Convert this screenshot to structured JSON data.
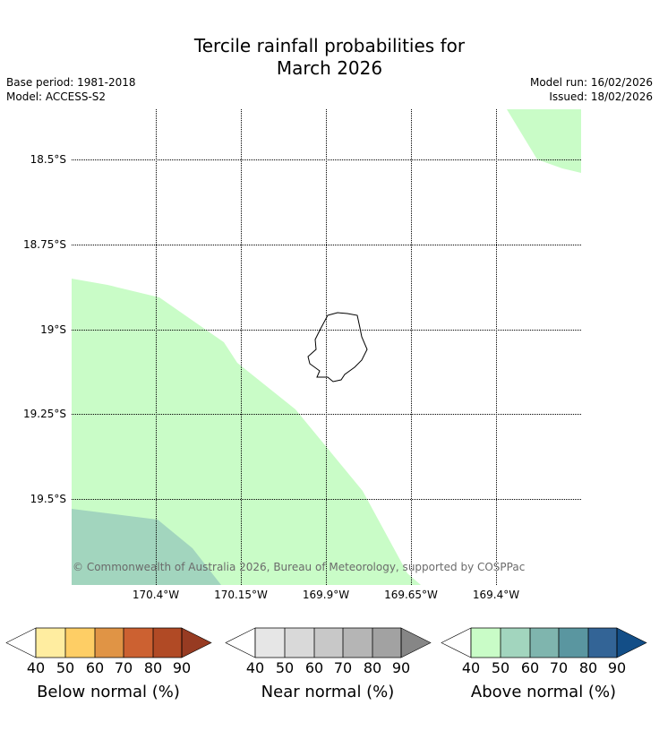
{
  "title_line1": "Tercile rainfall probabilities for",
  "title_line2": "March 2026",
  "base_period": "Base period: 1981-2018",
  "model": "Model: ACCESS-S2",
  "model_run": "Model run: 16/02/2026",
  "issued": "Issued: 18/02/2026",
  "latitude_labels": [
    "18.5°S",
    "18.75°S",
    "19°S",
    "19.25°S",
    "19.5°S"
  ],
  "longitude_labels": [
    "170.4°W",
    "170.15°W",
    "169.9°W",
    "169.65°W",
    "169.4°W"
  ],
  "copyright": "© Commonwealth of Australia 2026, Bureau of Meteorology, supported by COSPPac",
  "colorbars": [
    {
      "label": "Below normal (%)",
      "ticks": [
        "40",
        "50",
        "60",
        "70",
        "80",
        "90"
      ],
      "colors": [
        "#ffeda0",
        "#fece65",
        "#e09445",
        "#cc6131",
        "#b14a25"
      ],
      "under": "#ffffff",
      "over": "#973b22"
    },
    {
      "label": "Near normal (%)",
      "ticks": [
        "40",
        "50",
        "60",
        "70",
        "80",
        "90"
      ],
      "colors": [
        "#e6e6e6",
        "#d9d9d9",
        "#c8c8c8",
        "#b5b5b5",
        "#a2a2a2"
      ],
      "under": "#ffffff",
      "over": "#868686"
    },
    {
      "label": "Above normal (%)",
      "ticks": [
        "40",
        "50",
        "60",
        "70",
        "80",
        "90"
      ],
      "colors": [
        "#c9fcc7",
        "#a2d5be",
        "#7fb5ae",
        "#5a96a0",
        "#336496"
      ],
      "under": "#ffffff",
      "over": "#134e87"
    }
  ],
  "map_regions": [
    {
      "category": "Above normal",
      "range": "40-50",
      "color": "#c9fcc7"
    },
    {
      "category": "Above normal",
      "range": "50-60",
      "color": "#a2d5be"
    }
  ]
}
